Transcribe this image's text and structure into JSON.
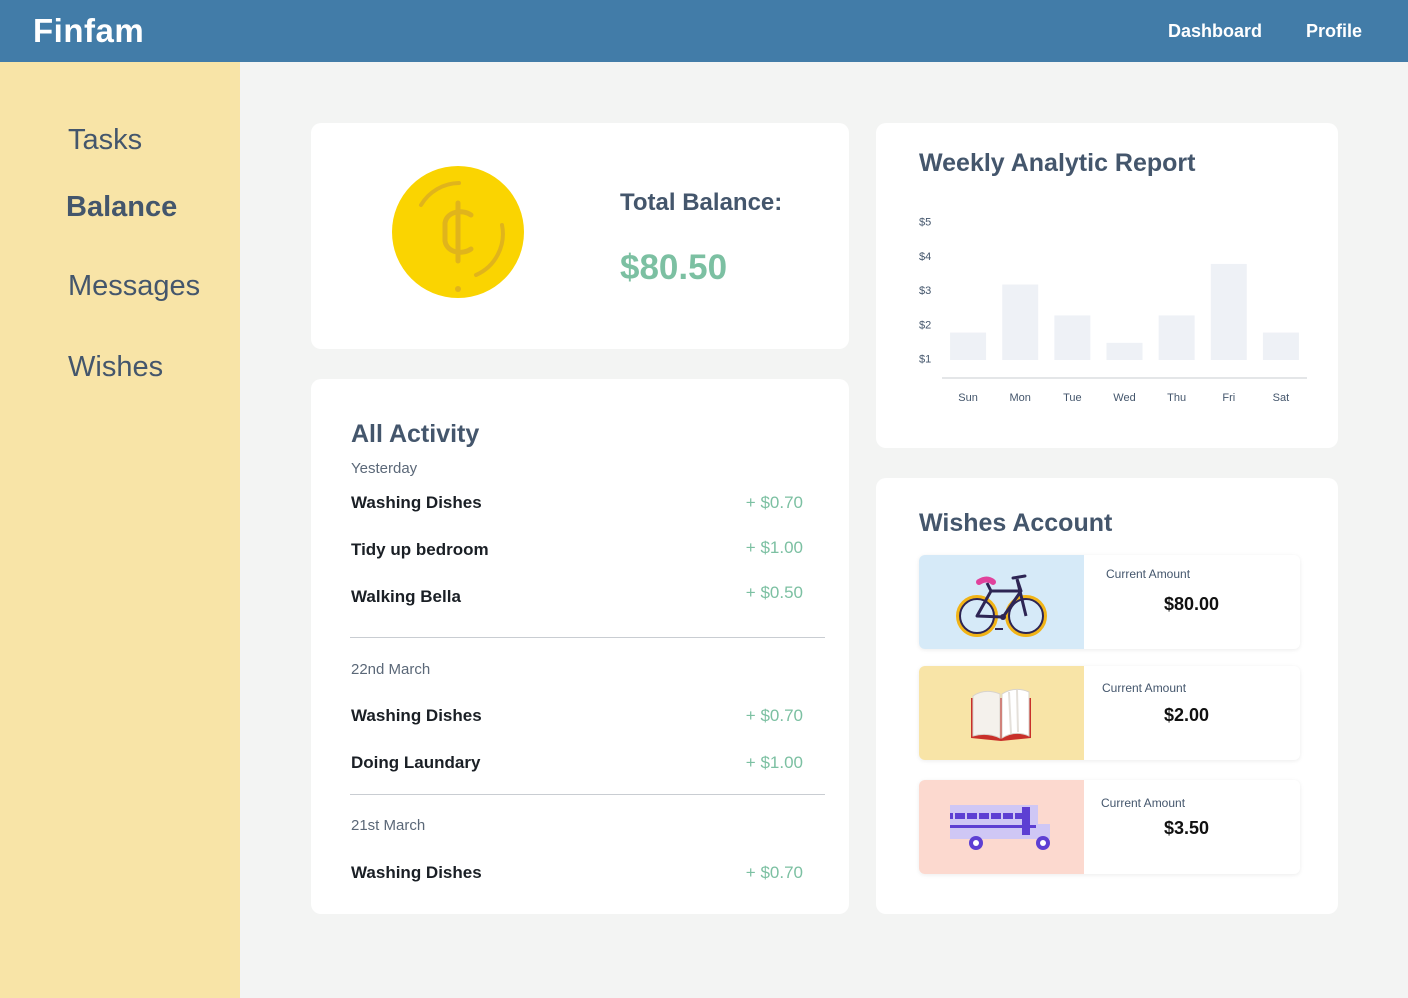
{
  "app": {
    "name": "Finfam"
  },
  "nav": {
    "dashboard": "Dashboard",
    "profile": "Profile"
  },
  "sidebar": {
    "items": [
      {
        "label": "Tasks",
        "active": false
      },
      {
        "label": "Balance",
        "active": true
      },
      {
        "label": "Messages",
        "active": false
      },
      {
        "label": "Wishes",
        "active": false
      }
    ]
  },
  "balance": {
    "label": "Total Balance:",
    "value": "$80.50",
    "icon": "coin-icon"
  },
  "activity": {
    "title": "All Activity",
    "groups": [
      {
        "label": "Yesterday",
        "items": [
          {
            "name": "Washing Dishes",
            "amount": "+ $0.70"
          },
          {
            "name": "Tidy up bedroom",
            "amount": "+ $1.00"
          },
          {
            "name": "Walking Bella",
            "amount": "+ $0.50"
          }
        ]
      },
      {
        "label": "22nd March",
        "items": [
          {
            "name": "Washing Dishes",
            "amount": "+ $0.70"
          },
          {
            "name": "Doing Laundary",
            "amount": "+ $1.00"
          }
        ]
      },
      {
        "label": "21st March",
        "items": [
          {
            "name": "Washing Dishes",
            "amount": "+ $0.70"
          }
        ]
      }
    ]
  },
  "report": {
    "title": "Weekly Analytic Report"
  },
  "chart_data": {
    "type": "bar",
    "title": "",
    "categories": [
      "Sun",
      "Mon",
      "Tue",
      "Wed",
      "Thu",
      "Fri",
      "Sat"
    ],
    "values": [
      0.8,
      2.2,
      1.3,
      0.5,
      1.3,
      2.8,
      0.8
    ],
    "y_ticks": [
      "$1",
      "$2",
      "$3",
      "$4",
      "$5"
    ],
    "ylim": [
      0,
      5
    ],
    "grid": false,
    "bar_color": "#eef1f6"
  },
  "wishes": {
    "title": "Wishes Account",
    "items": [
      {
        "icon": "bicycle-icon",
        "label": "Current Amount",
        "amount": "$80.00",
        "bg": "#d6eaf8"
      },
      {
        "icon": "book-icon",
        "label": "Current Amount",
        "amount": "$2.00",
        "bg": "#f8e4a7"
      },
      {
        "icon": "bus-icon",
        "label": "Current Amount",
        "amount": "$3.50",
        "bg": "#fcd9cf"
      }
    ]
  },
  "colors": {
    "header": "#427ca8",
    "sidebar": "#f8e4a7",
    "accent_green": "#7cc0a2",
    "coin": "#fad401"
  }
}
